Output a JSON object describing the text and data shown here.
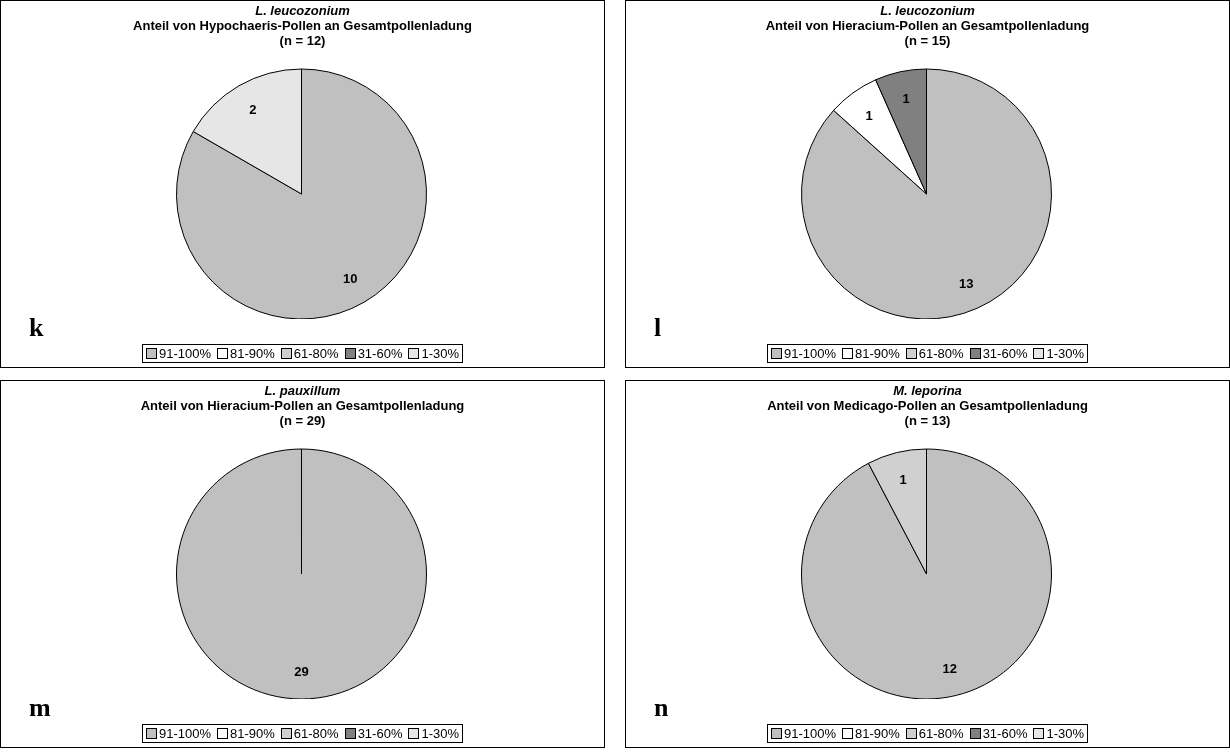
{
  "chart_data": [
    {
      "type": "pie",
      "title": "L. leucozonium",
      "subtitle": "Anteil von Hypochaeris-Pollen an Gesamtpollenladung\n(n = 12)",
      "categories": [
        "91-100%",
        "81-90%",
        "61-80%",
        "31-60%",
        "1-30%"
      ],
      "values": [
        10,
        0,
        0,
        0,
        2
      ],
      "colors": [
        "#c0c0c0",
        "#ffffff",
        "#d0d0d0",
        "#808080",
        "#e6e6e6"
      ],
      "data_labels": true,
      "legend": "bottom",
      "annotations": [
        "k"
      ]
    },
    {
      "type": "pie",
      "title": "L. leucozonium",
      "subtitle": "Anteil von Hieracium-Pollen an Gesamtpollenladung\n(n = 15)",
      "categories": [
        "91-100%",
        "81-90%",
        "61-80%",
        "31-60%",
        "1-30%"
      ],
      "values": [
        13,
        1,
        0,
        1,
        0
      ],
      "colors": [
        "#c0c0c0",
        "#ffffff",
        "#d0d0d0",
        "#808080",
        "#e6e6e6"
      ],
      "data_labels": true,
      "legend": "bottom",
      "annotations": [
        "l"
      ]
    },
    {
      "type": "pie",
      "title": "L. pauxillum",
      "subtitle": "Anteil von Hieracium-Pollen an Gesamtpollenladung\n(n = 29)",
      "categories": [
        "91-100%",
        "81-90%",
        "61-80%",
        "31-60%",
        "1-30%"
      ],
      "values": [
        29,
        0,
        0,
        0,
        0
      ],
      "colors": [
        "#c0c0c0",
        "#ffffff",
        "#d0d0d0",
        "#808080",
        "#e6e6e6"
      ],
      "data_labels": true,
      "legend": "bottom",
      "annotations": [
        "m"
      ]
    },
    {
      "type": "pie",
      "title": "M. leporina",
      "subtitle": "Anteil von Medicago-Pollen an Gesamtpollenladung\n(n = 13)",
      "categories": [
        "91-100%",
        "81-90%",
        "61-80%",
        "31-60%",
        "1-30%"
      ],
      "values": [
        12,
        0,
        1,
        0,
        0
      ],
      "colors": [
        "#c0c0c0",
        "#ffffff",
        "#d0d0d0",
        "#808080",
        "#e6e6e6"
      ],
      "data_labels": true,
      "legend": "bottom",
      "annotations": [
        "n"
      ]
    }
  ]
}
